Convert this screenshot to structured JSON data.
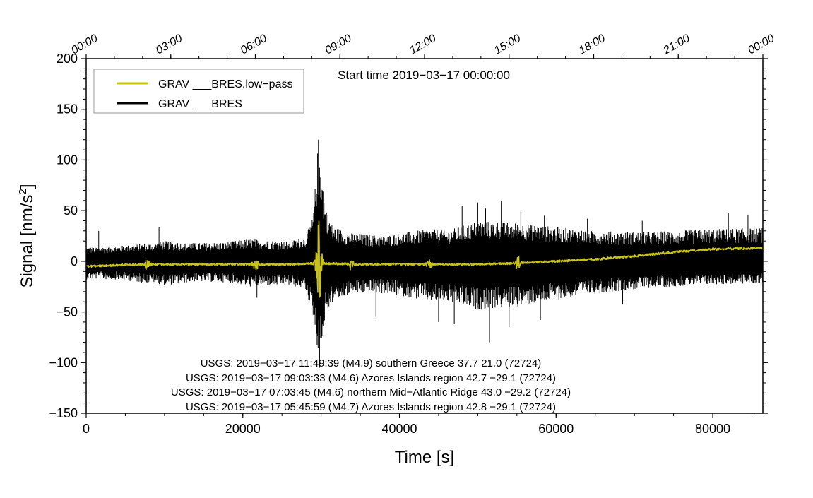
{
  "chart_data": {
    "type": "line",
    "xlabel": "Time [s]",
    "ylabel": "Signal [nm/s",
    "ylabel_superscript": "2",
    "ylabel_suffix": "]",
    "xlim": [
      0,
      86400
    ],
    "ylim": [
      -150,
      200
    ],
    "grid": false,
    "x_ticks": [
      0,
      20000,
      40000,
      60000,
      80000
    ],
    "x_tick_labels": [
      "0",
      "20000",
      "40000",
      "60000",
      "80000"
    ],
    "y_ticks": [
      -150,
      -100,
      -50,
      0,
      50,
      100,
      150,
      200
    ],
    "y_tick_labels": [
      "−150",
      "−100",
      "−50",
      "0",
      "50",
      "100",
      "150",
      "200"
    ],
    "top_axis": {
      "ticks_seconds": [
        0,
        10800,
        21600,
        32400,
        43200,
        54000,
        64800,
        75600,
        86400
      ],
      "labels": [
        "00:00",
        "03:00",
        "06:00",
        "09:00",
        "12:00",
        "15:00",
        "18:00",
        "21:00",
        "00:00"
      ]
    },
    "start_time_label": "Start time 2019−03−17 00:00:00",
    "legend": {
      "placement": "top-left",
      "entries": [
        {
          "label": "GRAV ___BRES.low−pass",
          "color": "#c9c317"
        },
        {
          "label": "GRAV ___BRES",
          "color": "#000000"
        }
      ]
    },
    "series": [
      {
        "name": "GRAV ___BRES",
        "color": "#000000",
        "kind": "envelope",
        "x": [
          0,
          4000,
          8000,
          10000,
          14000,
          18000,
          21500,
          22000,
          26000,
          28000,
          29000,
          29500,
          29700,
          30000,
          30500,
          31500,
          33000,
          34000,
          38000,
          40000,
          44000,
          46000,
          50000,
          55000,
          60000,
          65000,
          70000,
          75000,
          80000,
          86400
        ],
        "upper": [
          14,
          15,
          18,
          20,
          18,
          19,
          23,
          21,
          20,
          24,
          45,
          105,
          120,
          100,
          55,
          35,
          30,
          28,
          25,
          28,
          32,
          30,
          40,
          38,
          34,
          30,
          29,
          30,
          32,
          33
        ],
        "lower": [
          -18,
          -18,
          -22,
          -24,
          -20,
          -21,
          -26,
          -24,
          -24,
          -28,
          -55,
          -85,
          -100,
          -95,
          -55,
          -40,
          -35,
          -32,
          -32,
          -34,
          -40,
          -40,
          -48,
          -45,
          -38,
          -32,
          -28,
          -25,
          -23,
          -22
        ],
        "spikes": [
          {
            "x": 1600,
            "y": 30
          },
          {
            "x": 9300,
            "y": 34
          },
          {
            "x": 21800,
            "y": -36
          },
          {
            "x": 29650,
            "y": 120
          },
          {
            "x": 29800,
            "y": -105
          },
          {
            "x": 37000,
            "y": -55
          },
          {
            "x": 45000,
            "y": -60
          },
          {
            "x": 47000,
            "y": -62
          },
          {
            "x": 48000,
            "y": 55
          },
          {
            "x": 50000,
            "y": 58
          },
          {
            "x": 51000,
            "y": 52
          },
          {
            "x": 51500,
            "y": -80
          },
          {
            "x": 53000,
            "y": 60
          },
          {
            "x": 54000,
            "y": -65
          },
          {
            "x": 55500,
            "y": 50
          },
          {
            "x": 58000,
            "y": -58
          },
          {
            "x": 58500,
            "y": 45
          },
          {
            "x": 64000,
            "y": 42
          },
          {
            "x": 68500,
            "y": -42
          },
          {
            "x": 71000,
            "y": 40
          },
          {
            "x": 82000,
            "y": 48
          },
          {
            "x": 84500,
            "y": 46
          }
        ]
      },
      {
        "name": "GRAV ___BRES.low−pass",
        "color": "#c9c317",
        "kind": "line",
        "x": [
          0,
          4000,
          8000,
          10000,
          14000,
          18000,
          22000,
          26000,
          30000,
          34000,
          38000,
          44000,
          50000,
          55000,
          60000,
          65000,
          70000,
          75000,
          80000,
          86400
        ],
        "values": [
          -5,
          -4,
          -3,
          -3,
          -3,
          -3,
          -3,
          -3,
          -2,
          -3,
          -3,
          -3,
          -3,
          -2,
          0,
          2,
          5,
          9,
          12,
          13
        ],
        "bursts": [
          {
            "x": 7800,
            "amp": 4
          },
          {
            "x": 21700,
            "amp": 5
          },
          {
            "x": 29700,
            "amp": 28
          },
          {
            "x": 33800,
            "amp": 4
          },
          {
            "x": 43800,
            "amp": 3
          },
          {
            "x": 55200,
            "amp": 4
          }
        ]
      }
    ],
    "annotations": [
      "USGS: 2019−03−17 11:49:39 (M4.9) southern Greece 37.7 21.0 (72724)",
      "USGS: 2019−03−17 09:03:33 (M4.6) Azores Islands region 42.7 −29.1 (72724)",
      "USGS: 2019−03−17 07:03:45 (M4.6) northern Mid−Atlantic Ridge 43.0 −29.2 (72724)",
      "USGS: 2019−03−17 05:45:59 (M4.7) Azores Islands region 42.8 −29.1 (72724)"
    ]
  }
}
